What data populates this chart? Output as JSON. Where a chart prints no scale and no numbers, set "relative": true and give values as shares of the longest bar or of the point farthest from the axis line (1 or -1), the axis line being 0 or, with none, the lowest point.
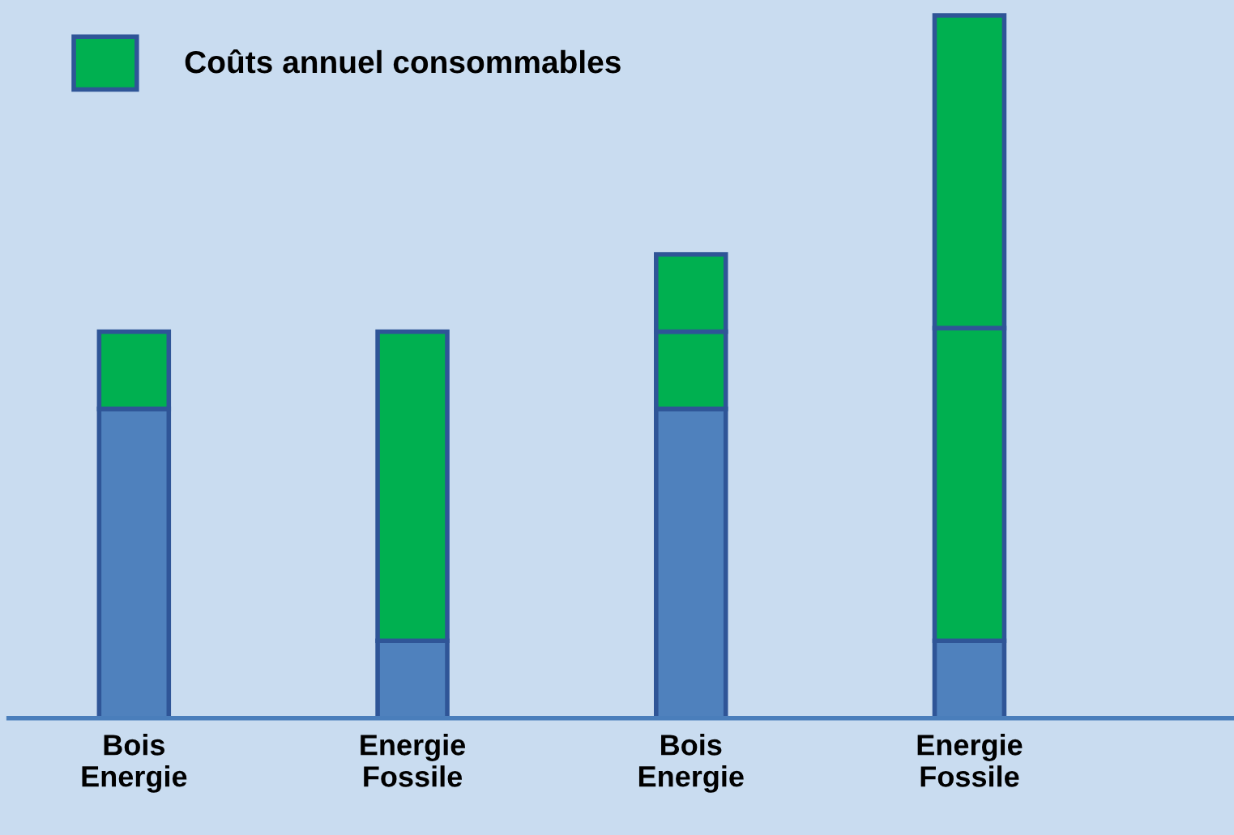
{
  "chart_data": {
    "type": "bar",
    "stacked": true,
    "relative": true,
    "legend": "top left",
    "categories": [
      "Bois\nEnergie",
      "Energie\nFossile",
      "Bois\nEnergie",
      "Energie\nFossile"
    ],
    "series": [
      {
        "color": "#4f81bd",
        "values": [
          0.44,
          0.11,
          0.44,
          0.11
        ]
      },
      {
        "name": "Coûts annuel consommables",
        "color": "#00b050",
        "values": [
          0.11,
          0.44,
          0.11,
          0.445
        ]
      },
      {
        "color": "#00b050",
        "values": [
          null,
          null,
          0.11,
          0.445
        ]
      }
    ]
  }
}
